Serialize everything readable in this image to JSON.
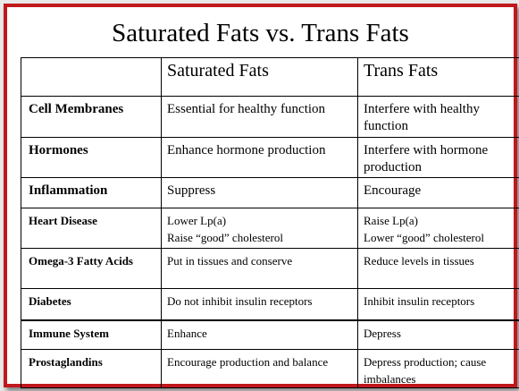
{
  "title": "Saturated Fats vs. Trans Fats",
  "columns": [
    "",
    "Saturated Fats",
    "Trans Fats"
  ],
  "rows": [
    {
      "label": "Cell Membranes",
      "saturated": "Essential for healthy function",
      "trans": "Interfere with healthy function"
    },
    {
      "label": "Hormones",
      "saturated": "Enhance hormone production",
      "trans": "Interfere with hormone production"
    },
    {
      "label": "Inflammation",
      "saturated": "Suppress",
      "trans": "Encourage"
    },
    {
      "label": "Heart Disease",
      "saturated": [
        "Lower Lp(a)",
        "Raise “good” cholesterol"
      ],
      "trans": [
        "Raise Lp(a)",
        "Lower “good” cholesterol"
      ]
    },
    {
      "label": "Omega-3 Fatty Acids",
      "saturated": "Put in tissues and conserve",
      "trans": "Reduce levels in tissues"
    },
    {
      "label": "Diabetes",
      "saturated": "Do not inhibit insulin receptors",
      "trans": "Inhibit insulin receptors"
    },
    {
      "label": "Immune System",
      "saturated": "Enhance",
      "trans": "Depress"
    },
    {
      "label": "Prostaglandins",
      "saturated": "Encourage production and balance",
      "trans": "Depress production; cause imbalances"
    }
  ],
  "colors": {
    "border": "#c0181c",
    "background": "#ffffff"
  }
}
